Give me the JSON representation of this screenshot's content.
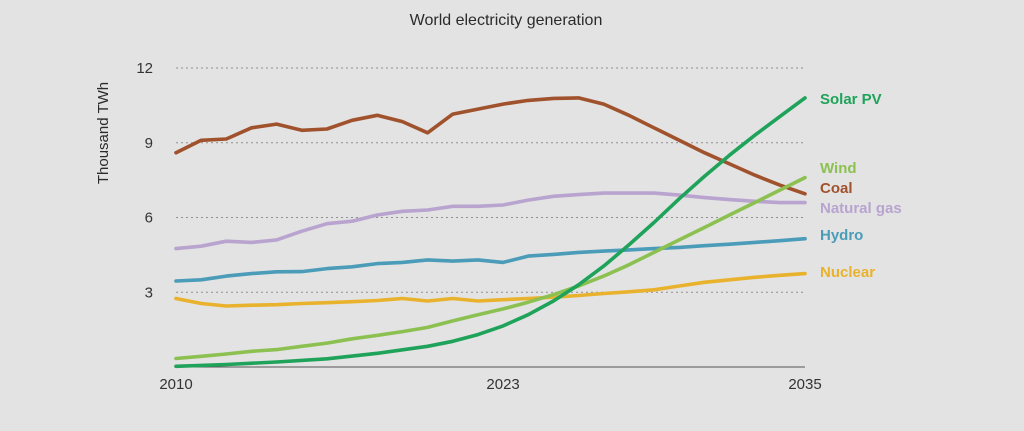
{
  "chart_data": {
    "type": "line",
    "title": "World electricity generation",
    "ylabel": "Thousand TWh",
    "xlabel": "",
    "x_ticks": [
      2010,
      2023,
      2035
    ],
    "y_ticks": [
      3,
      6,
      9,
      12
    ],
    "xlim": [
      2010,
      2035
    ],
    "ylim": [
      0,
      12
    ],
    "grid": "horizontal dotted",
    "legend": "direct labels at right end of lines",
    "series": [
      {
        "name": "Solar PV",
        "color": "#1fa35a",
        "points": [
          [
            2010,
            0.03
          ],
          [
            2012,
            0.1
          ],
          [
            2014,
            0.2
          ],
          [
            2016,
            0.33
          ],
          [
            2018,
            0.55
          ],
          [
            2020,
            0.83
          ],
          [
            2021,
            1.03
          ],
          [
            2022,
            1.3
          ],
          [
            2023,
            1.65
          ],
          [
            2024,
            2.1
          ],
          [
            2025,
            2.65
          ],
          [
            2026,
            3.3
          ],
          [
            2027,
            4.05
          ],
          [
            2028,
            4.9
          ],
          [
            2029,
            5.8
          ],
          [
            2030,
            6.75
          ],
          [
            2031,
            7.65
          ],
          [
            2032,
            8.5
          ],
          [
            2033,
            9.3
          ],
          [
            2034,
            10.05
          ],
          [
            2035,
            10.8
          ]
        ]
      },
      {
        "name": "Wind",
        "color": "#8cc152",
        "points": [
          [
            2010,
            0.34
          ],
          [
            2011,
            0.43
          ],
          [
            2012,
            0.52
          ],
          [
            2013,
            0.63
          ],
          [
            2014,
            0.7
          ],
          [
            2015,
            0.83
          ],
          [
            2016,
            0.96
          ],
          [
            2017,
            1.13
          ],
          [
            2018,
            1.27
          ],
          [
            2019,
            1.42
          ],
          [
            2020,
            1.59
          ],
          [
            2021,
            1.85
          ],
          [
            2022,
            2.1
          ],
          [
            2023,
            2.33
          ],
          [
            2024,
            2.6
          ],
          [
            2025,
            2.9
          ],
          [
            2026,
            3.25
          ],
          [
            2027,
            3.65
          ],
          [
            2028,
            4.1
          ],
          [
            2029,
            4.6
          ],
          [
            2030,
            5.1
          ],
          [
            2031,
            5.6
          ],
          [
            2032,
            6.1
          ],
          [
            2033,
            6.6
          ],
          [
            2034,
            7.1
          ],
          [
            2035,
            7.6
          ]
        ]
      },
      {
        "name": "Coal",
        "color": "#a0522d",
        "points": [
          [
            2010,
            8.6
          ],
          [
            2011,
            9.1
          ],
          [
            2012,
            9.15
          ],
          [
            2013,
            9.6
          ],
          [
            2014,
            9.75
          ],
          [
            2015,
            9.5
          ],
          [
            2016,
            9.55
          ],
          [
            2017,
            9.9
          ],
          [
            2018,
            10.1
          ],
          [
            2019,
            9.85
          ],
          [
            2020,
            9.4
          ],
          [
            2021,
            10.15
          ],
          [
            2022,
            10.35
          ],
          [
            2023,
            10.55
          ],
          [
            2024,
            10.7
          ],
          [
            2025,
            10.78
          ],
          [
            2026,
            10.8
          ],
          [
            2027,
            10.55
          ],
          [
            2028,
            10.1
          ],
          [
            2029,
            9.6
          ],
          [
            2030,
            9.1
          ],
          [
            2031,
            8.6
          ],
          [
            2032,
            8.15
          ],
          [
            2033,
            7.7
          ],
          [
            2034,
            7.3
          ],
          [
            2035,
            6.95
          ]
        ]
      },
      {
        "name": "Natural gas",
        "color": "#b8a4cf",
        "points": [
          [
            2010,
            4.75
          ],
          [
            2011,
            4.85
          ],
          [
            2012,
            5.05
          ],
          [
            2013,
            5.0
          ],
          [
            2014,
            5.1
          ],
          [
            2015,
            5.45
          ],
          [
            2016,
            5.75
          ],
          [
            2017,
            5.85
          ],
          [
            2018,
            6.1
          ],
          [
            2019,
            6.25
          ],
          [
            2020,
            6.3
          ],
          [
            2021,
            6.45
          ],
          [
            2022,
            6.45
          ],
          [
            2023,
            6.5
          ],
          [
            2024,
            6.7
          ],
          [
            2025,
            6.85
          ],
          [
            2026,
            6.92
          ],
          [
            2027,
            6.98
          ],
          [
            2028,
            6.98
          ],
          [
            2029,
            6.98
          ],
          [
            2030,
            6.9
          ],
          [
            2031,
            6.8
          ],
          [
            2032,
            6.72
          ],
          [
            2033,
            6.65
          ],
          [
            2034,
            6.6
          ],
          [
            2035,
            6.6
          ]
        ]
      },
      {
        "name": "Hydro",
        "color": "#4b9cb8",
        "points": [
          [
            2010,
            3.45
          ],
          [
            2011,
            3.5
          ],
          [
            2012,
            3.65
          ],
          [
            2013,
            3.75
          ],
          [
            2014,
            3.82
          ],
          [
            2015,
            3.83
          ],
          [
            2016,
            3.95
          ],
          [
            2017,
            4.02
          ],
          [
            2018,
            4.15
          ],
          [
            2019,
            4.2
          ],
          [
            2020,
            4.3
          ],
          [
            2021,
            4.25
          ],
          [
            2022,
            4.3
          ],
          [
            2023,
            4.2
          ],
          [
            2024,
            4.45
          ],
          [
            2025,
            4.52
          ],
          [
            2026,
            4.6
          ],
          [
            2027,
            4.65
          ],
          [
            2028,
            4.7
          ],
          [
            2029,
            4.75
          ],
          [
            2030,
            4.8
          ],
          [
            2031,
            4.87
          ],
          [
            2032,
            4.93
          ],
          [
            2033,
            5.0
          ],
          [
            2034,
            5.07
          ],
          [
            2035,
            5.15
          ]
        ]
      },
      {
        "name": "Nuclear",
        "color": "#e9b22d",
        "points": [
          [
            2010,
            2.75
          ],
          [
            2011,
            2.55
          ],
          [
            2012,
            2.45
          ],
          [
            2013,
            2.48
          ],
          [
            2014,
            2.5
          ],
          [
            2015,
            2.55
          ],
          [
            2016,
            2.58
          ],
          [
            2017,
            2.62
          ],
          [
            2018,
            2.67
          ],
          [
            2019,
            2.75
          ],
          [
            2020,
            2.65
          ],
          [
            2021,
            2.75
          ],
          [
            2022,
            2.65
          ],
          [
            2023,
            2.7
          ],
          [
            2024,
            2.75
          ],
          [
            2025,
            2.8
          ],
          [
            2026,
            2.87
          ],
          [
            2027,
            2.95
          ],
          [
            2028,
            3.02
          ],
          [
            2029,
            3.1
          ],
          [
            2030,
            3.25
          ],
          [
            2031,
            3.4
          ],
          [
            2032,
            3.5
          ],
          [
            2033,
            3.6
          ],
          [
            2034,
            3.68
          ],
          [
            2035,
            3.75
          ]
        ]
      }
    ]
  }
}
